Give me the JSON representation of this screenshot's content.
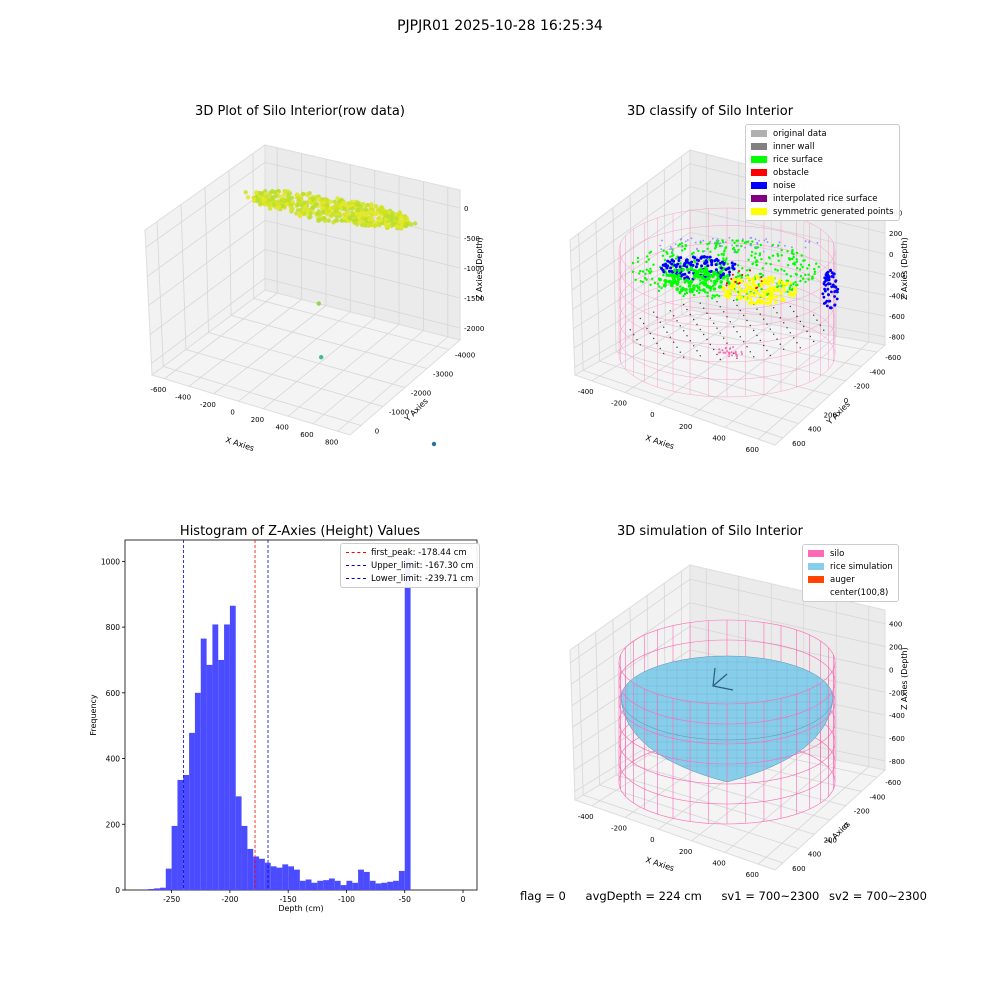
{
  "title": "PJPJR01 2025-10-28 16:25:34",
  "footer": {
    "flag": "flag = 0",
    "avg_depth": "avgDepth = 224 cm",
    "sv1": "sv1 = 700~2300",
    "sv2": "sv2 = 700~2300"
  },
  "colors": {
    "raw_points": "#c8e01a",
    "histogram_bar": "#4b4bff",
    "first_peak": "#ff0000",
    "limits": "#0000cc",
    "silo_wire": "#ff69b4",
    "rice": "#87ceeb"
  },
  "chart_data": [
    {
      "type": "scatter3d",
      "title": "3D Plot of Silo Interior(row data)",
      "xlabel": "X Axies",
      "ylabel": "Y Axies",
      "zlabel": "Z Axies (Depth)",
      "x_ticks": [
        "-600",
        "-400",
        "-200",
        "0",
        "200",
        "400",
        "600",
        "800"
      ],
      "y_ticks": [
        "0",
        "-1000",
        "-2000",
        "-3000",
        "-4000"
      ],
      "z_ticks": [
        "0",
        "-500",
        "-1000",
        "-1500",
        "-2000"
      ],
      "points_note": "",
      "outliers": [
        {
          "label": "",
          "x": 50,
          "y": -200,
          "z": -1100
        },
        {
          "label": "",
          "x": 60,
          "y": -400,
          "z": -1600
        },
        {
          "label": "",
          "x": 700,
          "y": -3000,
          "z": -2000
        },
        {
          "label": "",
          "x": 800,
          "y": -3900,
          "z": -2200
        }
      ]
    },
    {
      "type": "scatter3d",
      "title": "3D classify of Silo Interior",
      "xlabel": "X Axies",
      "ylabel": "Y Axies",
      "zlabel": "Z Axies (Depth)",
      "x_ticks": [
        "-400",
        "-200",
        "0",
        "200",
        "400",
        "600"
      ],
      "y_ticks": [
        "600",
        "400",
        "200",
        "0",
        "-200",
        "-400",
        "-600"
      ],
      "z_ticks": [
        "400",
        "200",
        "0",
        "-200",
        "-400",
        "-600",
        "-800"
      ],
      "legend": [
        {
          "label": "original data",
          "color": "#b0b0b0"
        },
        {
          "label": "inner wall",
          "color": "#808080"
        },
        {
          "label": "rice surface",
          "color": "#00ff00"
        },
        {
          "label": "obstacle",
          "color": "#ff0000"
        },
        {
          "label": "noise",
          "color": "#0000ff"
        },
        {
          "label": "interpolated rice surface",
          "color": "#800080"
        },
        {
          "label": "symmetric generated points",
          "color": "#ffff00"
        }
      ]
    },
    {
      "type": "bar",
      "title": "Histogram of Z-Axies (Height) Values",
      "xlabel": "Depth (cm)",
      "ylabel": "Frequency",
      "xlim": [
        -290,
        12
      ],
      "ylim": [
        0,
        1065
      ],
      "x_ticks": [
        -250,
        -200,
        -150,
        -100,
        -50,
        0
      ],
      "y_ticks": [
        0,
        200,
        400,
        600,
        800,
        1000
      ],
      "bin_start": -275,
      "bin_width": 5,
      "values": [
        2,
        3,
        5,
        7,
        65,
        195,
        335,
        350,
        478,
        600,
        765,
        685,
        808,
        700,
        808,
        865,
        285,
        195,
        125,
        102,
        95,
        83,
        72,
        68,
        78,
        72,
        62,
        28,
        32,
        22,
        28,
        30,
        35,
        28,
        15,
        28,
        22,
        62,
        55,
        28,
        20,
        22,
        25,
        28,
        58,
        1010
      ],
      "vlines": [
        {
          "label": "first_peak: -178.44 cm",
          "x": -178.44,
          "color": "#ff0000"
        },
        {
          "label": "Upper_limit: -167.30 cm",
          "x": -167.3,
          "color": "#0000cc"
        },
        {
          "label": "Lower_limit: -239.71 cm",
          "x": -239.71,
          "color": "#0000cc"
        }
      ]
    },
    {
      "type": "surface3d",
      "title": "3D simulation of Silo Interior",
      "xlabel": "X Axies",
      "ylabel": "Y Axies",
      "zlabel": "Z Axies (Depth)",
      "x_ticks": [
        "-400",
        "-200",
        "0",
        "200",
        "400",
        "600"
      ],
      "y_ticks": [
        "600",
        "400",
        "200",
        "0",
        "-200",
        "-400",
        "-600"
      ],
      "z_ticks": [
        "400",
        "200",
        "0",
        "-200",
        "-400",
        "-600",
        "-800"
      ],
      "legend": [
        {
          "label": "silo",
          "color": "#ff69b4"
        },
        {
          "label": "rice simulation",
          "color": "#87ceeb"
        },
        {
          "label": "auger",
          "color": "#ff4500"
        },
        {
          "label": "center(100,8)",
          "color": ""
        }
      ]
    }
  ]
}
